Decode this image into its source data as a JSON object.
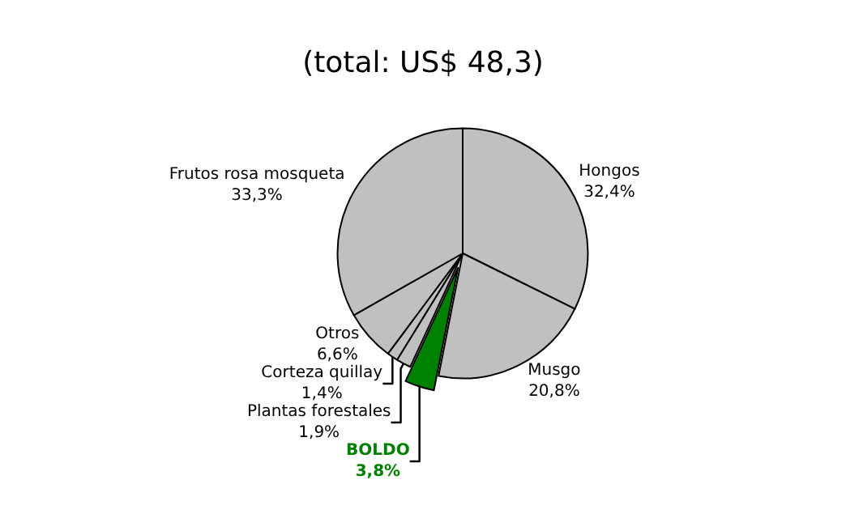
{
  "chart_data": {
    "type": "pie",
    "title": "(total: US$ 48,3)",
    "categories": [
      "Hongos",
      "Musgo",
      "BOLDO",
      "Plantas forestales",
      "Corteza quillay",
      "Otros",
      "Frutos rosa mosqueta"
    ],
    "values": [
      32.4,
      20.8,
      3.8,
      1.9,
      1.4,
      6.6,
      33.3
    ],
    "value_labels": [
      "32,4%",
      "20,8%",
      "3,8%",
      "1,9%",
      "1,4%",
      "6,6%",
      "33,3%"
    ],
    "colors": [
      "#c0c0c0",
      "#c0c0c0",
      "#008000",
      "#c0c0c0",
      "#c0c0c0",
      "#c0c0c0",
      "#c0c0c0"
    ],
    "legend": false
  }
}
